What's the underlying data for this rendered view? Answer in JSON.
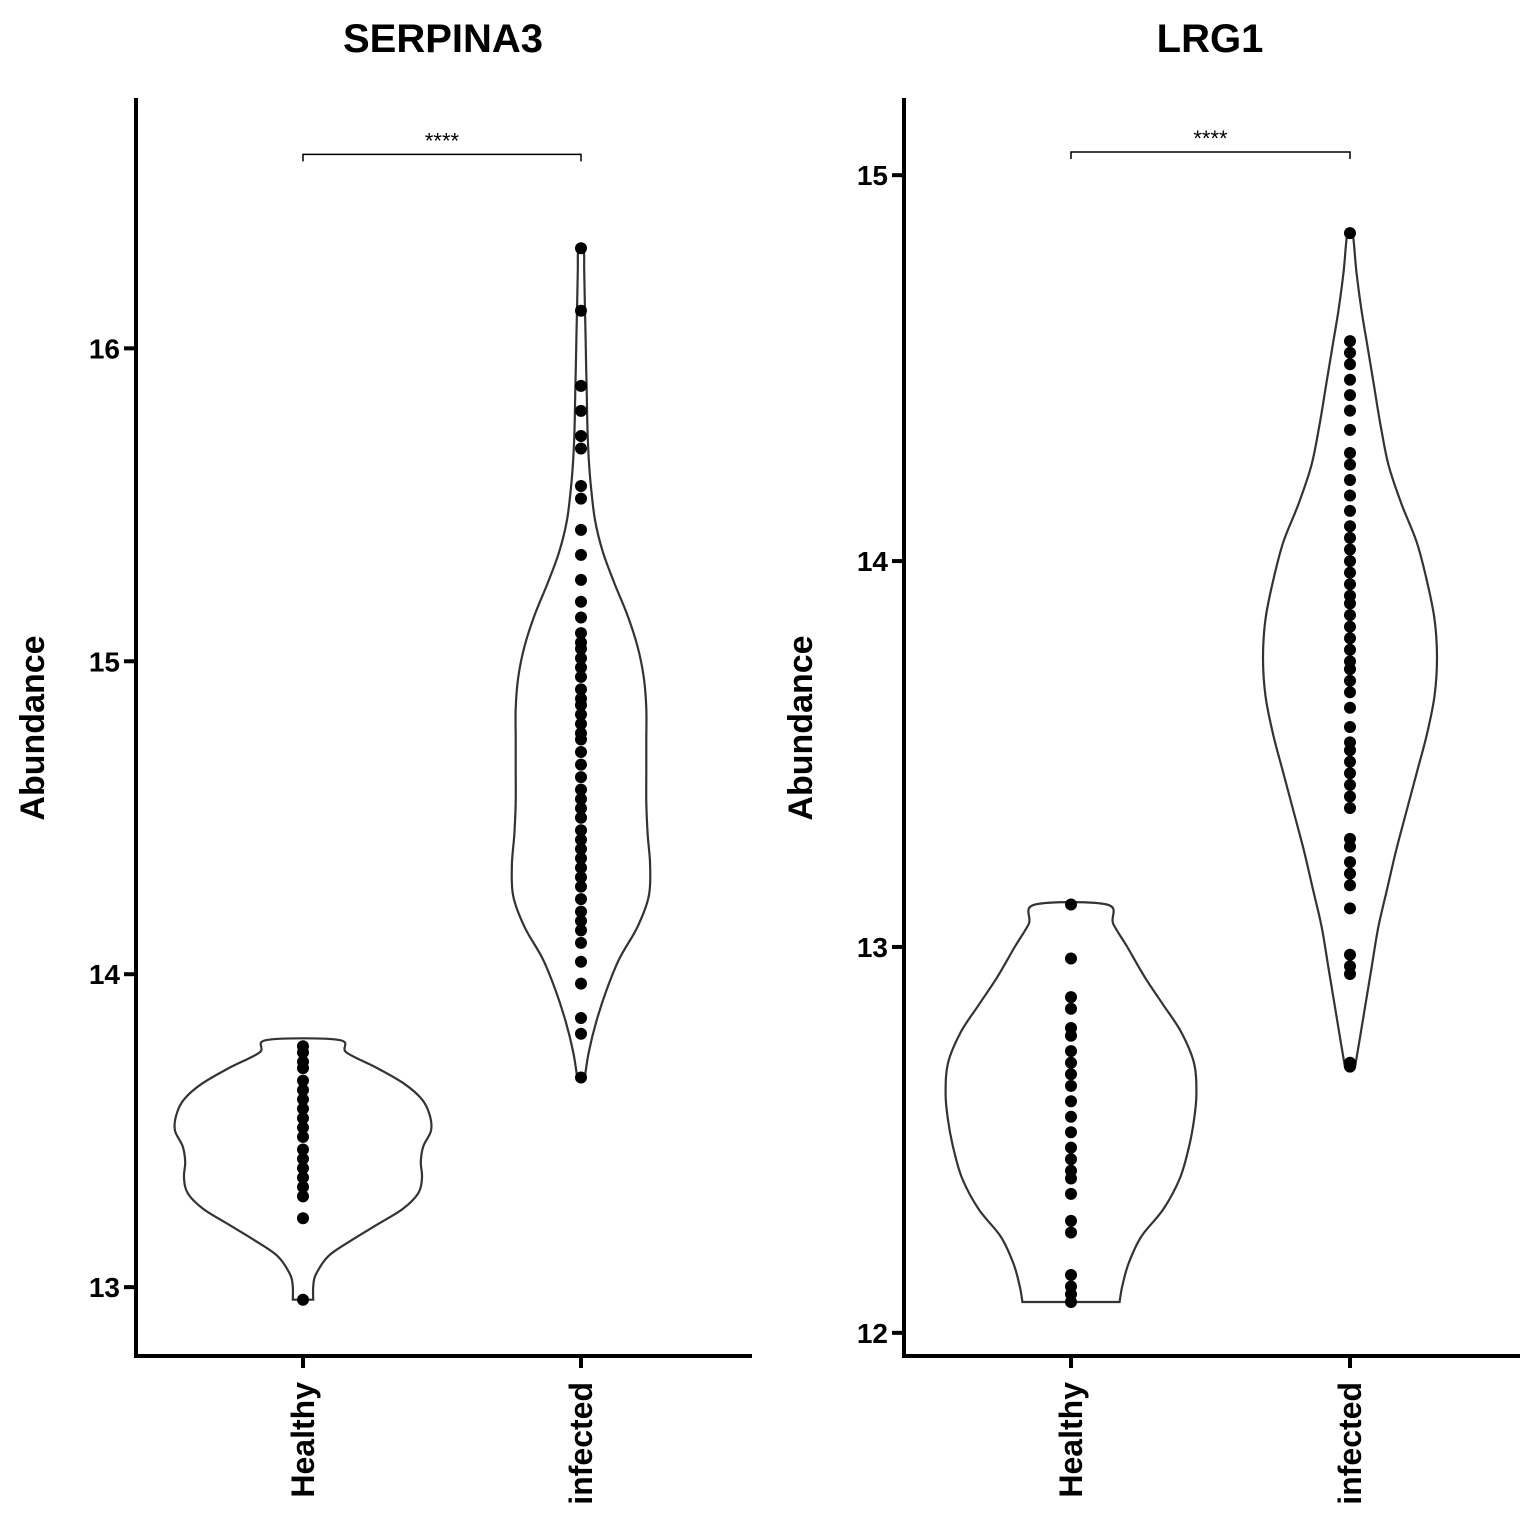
{
  "chart_data": [
    {
      "type": "violin",
      "title": "SERPINA3",
      "ylabel": "Abundance",
      "categories": [
        "Healthy",
        "infected"
      ],
      "ylim": [
        12.78,
        16.8
      ],
      "yticks": [
        13,
        14,
        15,
        16
      ],
      "grid": false,
      "significance": {
        "from": "Healthy",
        "to": "infected",
        "label": "****",
        "y": 16.62
      },
      "series": [
        {
          "category": "Healthy",
          "points": [
            13.77,
            13.75,
            13.72,
            13.7,
            13.66,
            13.63,
            13.6,
            13.57,
            13.54,
            13.51,
            13.48,
            13.44,
            13.41,
            13.38,
            13.35,
            13.32,
            13.29,
            13.22,
            12.96
          ],
          "violin": {
            "y": [
              12.96,
              13.0,
              13.04,
              13.1,
              13.15,
              13.2,
              13.25,
              13.3,
              13.35,
              13.4,
              13.45,
              13.5,
              13.55,
              13.6,
              13.65,
              13.7,
              13.75,
              13.79
            ],
            "w": [
              0.08,
              0.08,
              0.1,
              0.2,
              0.38,
              0.58,
              0.78,
              0.9,
              0.93,
              0.92,
              0.94,
              1.0,
              0.99,
              0.93,
              0.79,
              0.58,
              0.34,
              0.28
            ]
          }
        },
        {
          "category": "infected",
          "points": [
            16.32,
            16.12,
            15.88,
            15.8,
            15.72,
            15.68,
            15.56,
            15.52,
            15.42,
            15.34,
            15.26,
            15.19,
            15.14,
            15.09,
            15.06,
            15.04,
            15.01,
            14.98,
            14.95,
            14.91,
            14.88,
            14.86,
            14.83,
            14.8,
            14.77,
            14.75,
            14.71,
            14.67,
            14.63,
            14.59,
            14.56,
            14.53,
            14.5,
            14.46,
            14.43,
            14.4,
            14.37,
            14.34,
            14.31,
            14.28,
            14.24,
            14.2,
            14.17,
            14.14,
            14.1,
            14.04,
            13.97,
            13.86,
            13.81,
            13.67
          ],
          "violin": {
            "y": [
              13.67,
              13.75,
              13.85,
              13.95,
              14.05,
              14.15,
              14.25,
              14.35,
              14.45,
              14.55,
              14.65,
              14.75,
              14.85,
              14.95,
              15.05,
              15.15,
              15.25,
              15.35,
              15.45,
              15.55,
              15.65,
              15.75,
              15.85,
              15.95,
              16.05,
              16.15,
              16.25,
              16.32
            ],
            "w": [
              0.03,
              0.06,
              0.12,
              0.2,
              0.3,
              0.44,
              0.53,
              0.54,
              0.52,
              0.51,
              0.51,
              0.51,
              0.51,
              0.49,
              0.44,
              0.36,
              0.26,
              0.17,
              0.11,
              0.08,
              0.06,
              0.05,
              0.045,
              0.04,
              0.035,
              0.03,
              0.025,
              0.02
            ]
          }
        }
      ]
    },
    {
      "type": "violin",
      "title": "LRG1",
      "ylabel": "Abundance",
      "categories": [
        "Healthy",
        "infected"
      ],
      "ylim": [
        11.94,
        15.2
      ],
      "yticks": [
        12,
        13,
        14,
        15
      ],
      "grid": false,
      "significance": {
        "from": "Healthy",
        "to": "infected",
        "label": "****",
        "y": 15.06
      },
      "series": [
        {
          "category": "Healthy",
          "points": [
            13.11,
            12.97,
            12.87,
            12.84,
            12.79,
            12.77,
            12.73,
            12.7,
            12.67,
            12.64,
            12.6,
            12.56,
            12.52,
            12.48,
            12.45,
            12.42,
            12.4,
            12.36,
            12.29,
            12.26,
            12.15,
            12.12,
            12.1,
            12.08
          ],
          "violin": {
            "y": [
              12.08,
              12.12,
              12.18,
              12.25,
              12.32,
              12.4,
              12.48,
              12.55,
              12.62,
              12.7,
              12.78,
              12.85,
              12.92,
              13.0,
              13.06,
              13.11
            ],
            "w": [
              0.38,
              0.4,
              0.45,
              0.55,
              0.72,
              0.85,
              0.92,
              0.96,
              0.98,
              0.96,
              0.86,
              0.72,
              0.58,
              0.44,
              0.33,
              0.28
            ]
          }
        },
        {
          "category": "infected",
          "points": [
            14.85,
            14.57,
            14.54,
            14.51,
            14.47,
            14.43,
            14.39,
            14.34,
            14.28,
            14.25,
            14.21,
            14.17,
            14.13,
            14.09,
            14.06,
            14.03,
            14.0,
            13.97,
            13.94,
            13.91,
            13.89,
            13.86,
            13.83,
            13.8,
            13.77,
            13.74,
            13.72,
            13.69,
            13.66,
            13.62,
            13.57,
            13.53,
            13.51,
            13.48,
            13.45,
            13.42,
            13.39,
            13.36,
            13.28,
            13.26,
            13.22,
            13.19,
            13.16,
            13.1,
            12.98,
            12.95,
            12.93,
            12.7,
            12.69
          ],
          "violin": {
            "y": [
              12.69,
              12.75,
              12.85,
              12.95,
              13.05,
              13.15,
              13.25,
              13.35,
              13.45,
              13.55,
              13.65,
              13.75,
              13.85,
              13.95,
              14.05,
              14.15,
              14.25,
              14.35,
              14.45,
              14.55,
              14.65,
              14.75,
              14.85
            ],
            "w": [
              0.04,
              0.07,
              0.12,
              0.17,
              0.22,
              0.29,
              0.36,
              0.44,
              0.52,
              0.6,
              0.66,
              0.68,
              0.66,
              0.6,
              0.52,
              0.4,
              0.3,
              0.24,
              0.19,
              0.14,
              0.09,
              0.05,
              0.02
            ]
          }
        }
      ]
    }
  ]
}
